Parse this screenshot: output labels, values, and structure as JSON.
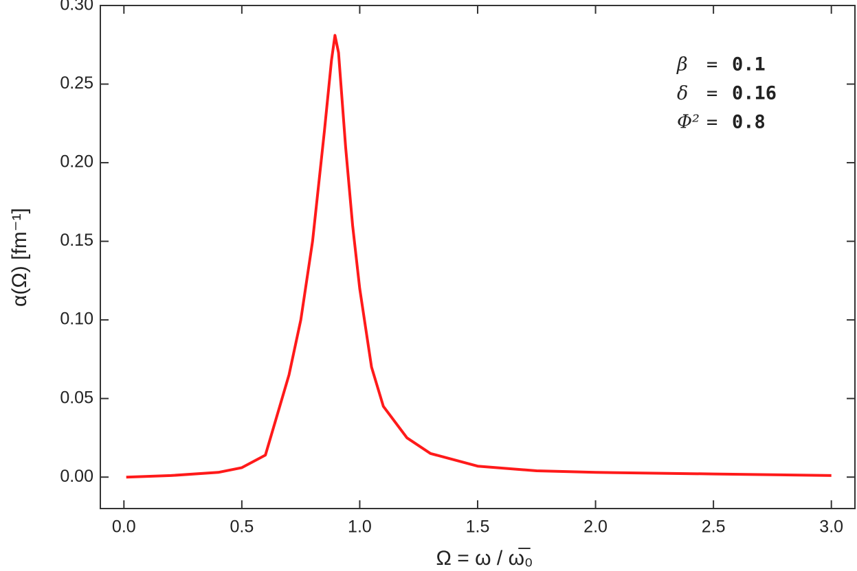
{
  "chart_data": {
    "type": "line",
    "xlabel": "Ω = ω / ω̅₀",
    "ylabel": "α(Ω) [fm⁻¹]",
    "x": [
      0.01,
      0.2,
      0.4,
      0.5,
      0.6,
      0.7,
      0.75,
      0.8,
      0.85,
      0.88,
      0.895,
      0.91,
      0.94,
      0.97,
      1.0,
      1.05,
      1.1,
      1.2,
      1.3,
      1.5,
      1.75,
      2.0,
      2.5,
      3.0
    ],
    "series": [
      {
        "color": "#ff1a1a",
        "values": [
          0,
          0.001,
          0.003,
          0.006,
          0.014,
          0.065,
          0.1,
          0.15,
          0.22,
          0.265,
          0.281,
          0.27,
          0.21,
          0.16,
          0.12,
          0.07,
          0.045,
          0.025,
          0.015,
          0.007,
          0.004,
          0.003,
          0.002,
          0.001
        ]
      }
    ],
    "xlim": [
      -0.1,
      3.1
    ],
    "ylim": [
      -0.02,
      0.3
    ],
    "xticks": [
      {
        "value": 0,
        "label": "0.0"
      },
      0.5,
      {
        "value": 1,
        "label": "1.0"
      },
      1.5,
      {
        "value": 2,
        "label": "2.0"
      },
      2.5,
      {
        "value": 3,
        "label": "3.0"
      }
    ],
    "yticks": [
      {
        "value": 0,
        "label": "0.00"
      },
      0.05,
      {
        "value": 0.1,
        "label": "0.10"
      },
      0.15,
      {
        "value": 0.2,
        "label": "0.20"
      },
      0.25,
      {
        "value": 0.3,
        "label": "0.30"
      }
    ],
    "annotations": [
      {
        "symbol": "β",
        "value": "0.1"
      },
      {
        "symbol": "δ",
        "value": "0.16"
      },
      {
        "symbol": "Φ²",
        "value": "0.8"
      }
    ],
    "grid": false
  }
}
